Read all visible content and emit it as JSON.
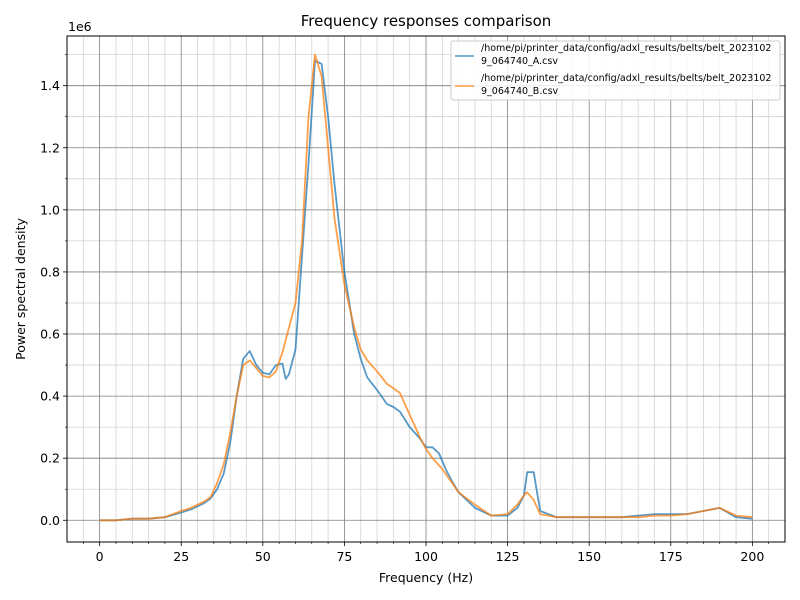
{
  "chart_data": {
    "type": "line",
    "title": "Frequency responses comparison",
    "xlabel": "Frequency (Hz)",
    "ylabel": "Power spectral density",
    "y_offset_text": "1e6",
    "xlim": [
      -10,
      210
    ],
    "ylim": [
      -0.07,
      1.56
    ],
    "x_ticks": [
      0,
      25,
      50,
      75,
      100,
      125,
      150,
      175,
      200
    ],
    "x_tick_labels": [
      "0",
      "25",
      "50",
      "75",
      "100",
      "125",
      "150",
      "175",
      "200"
    ],
    "y_ticks": [
      0.0,
      0.2,
      0.4,
      0.6,
      0.8,
      1.0,
      1.2,
      1.4
    ],
    "y_tick_labels": [
      "0.0",
      "0.2",
      "0.4",
      "0.6",
      "0.8",
      "1.0",
      "1.2",
      "1.4"
    ],
    "grid": true,
    "minor_grid": true,
    "legend_position": "top-right",
    "series": [
      {
        "name": "/home/pi/printer_data/config/adxl_results/belts/belt_20231029_064740_A.csv",
        "legend_lines": [
          "/home/pi/printer_data/config/adxl_results/belts/belt_2023102",
          "9_064740_A.csv"
        ],
        "color": "#1f77b4",
        "x": [
          0,
          5,
          10,
          15,
          20,
          25,
          28,
          30,
          32,
          34,
          36,
          38,
          40,
          42,
          44,
          46,
          48,
          50,
          52,
          54,
          56,
          57,
          58,
          60,
          62,
          64,
          66,
          68,
          70,
          72,
          75,
          78,
          80,
          82,
          85,
          88,
          90,
          92,
          95,
          98,
          100,
          102,
          104,
          106,
          108,
          110,
          115,
          120,
          125,
          128,
          130,
          131,
          133,
          135,
          140,
          145,
          150,
          155,
          160,
          165,
          170,
          175,
          180,
          185,
          190,
          195,
          200
        ],
        "y": [
          0,
          0,
          0.005,
          0.005,
          0.01,
          0.025,
          0.035,
          0.045,
          0.055,
          0.07,
          0.1,
          0.15,
          0.25,
          0.4,
          0.52,
          0.545,
          0.5,
          0.475,
          0.47,
          0.5,
          0.505,
          0.455,
          0.47,
          0.55,
          0.85,
          1.15,
          1.48,
          1.47,
          1.3,
          1.08,
          0.8,
          0.6,
          0.52,
          0.46,
          0.42,
          0.375,
          0.365,
          0.35,
          0.3,
          0.265,
          0.235,
          0.235,
          0.215,
          0.165,
          0.125,
          0.09,
          0.04,
          0.015,
          0.015,
          0.04,
          0.08,
          0.155,
          0.155,
          0.03,
          0.01,
          0.01,
          0.01,
          0.01,
          0.01,
          0.015,
          0.02,
          0.02,
          0.02,
          0.03,
          0.04,
          0.01,
          0.005
        ]
      },
      {
        "name": "/home/pi/printer_data/config/adxl_results/belts/belt_20231029_064740_B.csv",
        "legend_lines": [
          "/home/pi/printer_data/config/adxl_results/belts/belt_2023102",
          "9_064740_B.csv"
        ],
        "color": "#ff7f0e",
        "x": [
          0,
          5,
          10,
          15,
          20,
          25,
          28,
          30,
          32,
          34,
          36,
          38,
          40,
          42,
          44,
          46,
          48,
          50,
          52,
          54,
          56,
          58,
          60,
          62,
          64,
          66,
          68,
          70,
          72,
          75,
          78,
          80,
          82,
          85,
          88,
          90,
          92,
          95,
          98,
          100,
          102,
          105,
          110,
          115,
          120,
          125,
          128,
          130,
          131,
          133,
          135,
          140,
          145,
          150,
          155,
          160,
          165,
          170,
          175,
          180,
          185,
          190,
          195,
          200
        ],
        "y": [
          0,
          0,
          0.005,
          0.005,
          0.01,
          0.03,
          0.04,
          0.05,
          0.06,
          0.075,
          0.12,
          0.18,
          0.28,
          0.4,
          0.5,
          0.515,
          0.49,
          0.465,
          0.46,
          0.48,
          0.54,
          0.62,
          0.7,
          0.9,
          1.3,
          1.5,
          1.43,
          1.2,
          0.97,
          0.76,
          0.62,
          0.55,
          0.515,
          0.48,
          0.44,
          0.425,
          0.41,
          0.34,
          0.27,
          0.23,
          0.2,
          0.165,
          0.09,
          0.05,
          0.015,
          0.02,
          0.05,
          0.08,
          0.09,
          0.065,
          0.02,
          0.01,
          0.01,
          0.01,
          0.01,
          0.01,
          0.01,
          0.015,
          0.015,
          0.02,
          0.03,
          0.04,
          0.015,
          0.01
        ]
      }
    ]
  }
}
